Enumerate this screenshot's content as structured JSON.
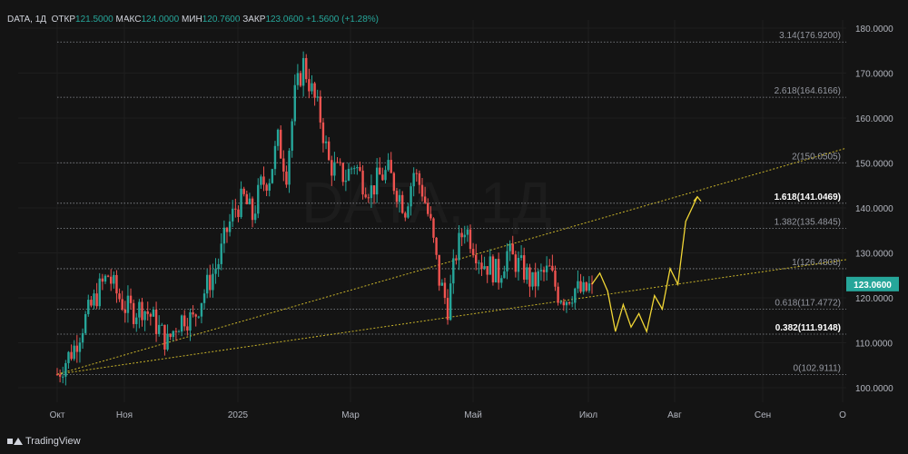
{
  "header": {
    "symbol": "DATA, 1Д",
    "open_label": "ОТКР",
    "open_value": "121.5000",
    "high_label": "МАКС",
    "high_value": "124.0000",
    "low_label": "МИН",
    "low_value": "120.7600",
    "close_label": "ЗАКР",
    "close_value": "123.0600",
    "change": "+1.5600 (+1.28%)"
  },
  "watermark": "DATA, 1Д",
  "footer": {
    "brand": "TradingView"
  },
  "colors": {
    "up": "#26a69a",
    "down": "#ef5350",
    "grid": "#2a2a2a",
    "fib": "#b2b5be",
    "trend": "#c9b42a",
    "projection": "#f0d535",
    "price_tag": "#26a69a"
  },
  "chart_data": {
    "type": "candlestick",
    "ylim": [
      98,
      183
    ],
    "x_axis_labels": [
      "Окт",
      "Ноя",
      "2025",
      "Мар",
      "Май",
      "Июл",
      "Авг",
      "Сен",
      "О"
    ],
    "y_axis_labels": [
      "100.0000",
      "110.0000",
      "120.0000",
      "130.0000",
      "140.0000",
      "150.0000",
      "160.0000",
      "170.0000",
      "180.0000"
    ],
    "y_ticks": [
      100,
      110,
      120,
      130,
      140,
      150,
      160,
      170,
      180
    ],
    "last_price": {
      "value": 123.06,
      "label": "123.0600"
    },
    "fib_levels": [
      {
        "value": 176.92,
        "label": "3.14(176.9200)",
        "bold": false
      },
      {
        "value": 164.6166,
        "label": "2.618(164.6166)",
        "bold": false
      },
      {
        "value": 150.0505,
        "label": "2(150.0505)",
        "bold": false
      },
      {
        "value": 141.0469,
        "label": "1.618(141.0469)",
        "bold": true
      },
      {
        "value": 135.4845,
        "label": "1.382(135.4845)",
        "bold": false
      },
      {
        "value": 126.4808,
        "label": "1(126.4808)",
        "bold": false
      },
      {
        "value": 117.4772,
        "label": "0.618(117.4772)",
        "bold": false
      },
      {
        "value": 111.9148,
        "label": "0.382(111.9148)",
        "bold": true
      },
      {
        "value": 102.9111,
        "label": "0(102.9111)",
        "bold": false
      }
    ],
    "trendlines": [
      {
        "from": [
          "Окт",
          103
        ],
        "to": [
          "Сен+",
          153
        ]
      },
      {
        "from": [
          "Окт",
          103
        ],
        "to": [
          "Сен+",
          128.5
        ]
      }
    ],
    "projection_path": [
      [
        123.06,
        0
      ],
      [
        125.5,
        1
      ],
      [
        121.5,
        2
      ],
      [
        112.5,
        3
      ],
      [
        118.5,
        4
      ],
      [
        113.5,
        5
      ],
      [
        116.5,
        6
      ],
      [
        112.5,
        7
      ],
      [
        120.5,
        8
      ],
      [
        117.5,
        9
      ],
      [
        126.5,
        10
      ],
      [
        123.0,
        11
      ],
      [
        137.0,
        12
      ],
      [
        142.5,
        13
      ]
    ],
    "series": [
      {
        "name": "DATA",
        "path_closes": [
          103,
          106,
          109,
          114,
          118,
          122,
          125,
          121,
          118,
          117,
          118,
          116,
          113,
          110,
          114,
          116,
          115,
          120,
          124,
          128,
          135,
          140,
          142,
          138,
          145,
          147,
          155,
          148,
          165,
          172,
          166,
          160,
          150,
          148,
          147,
          150,
          146,
          144,
          147,
          148,
          144,
          140,
          148,
          144,
          136,
          124,
          118,
          130,
          136,
          132,
          128,
          127,
          125,
          130,
          128,
          126,
          123,
          125,
          126,
          121,
          120,
          122,
          121,
          123.06
        ]
      }
    ]
  }
}
